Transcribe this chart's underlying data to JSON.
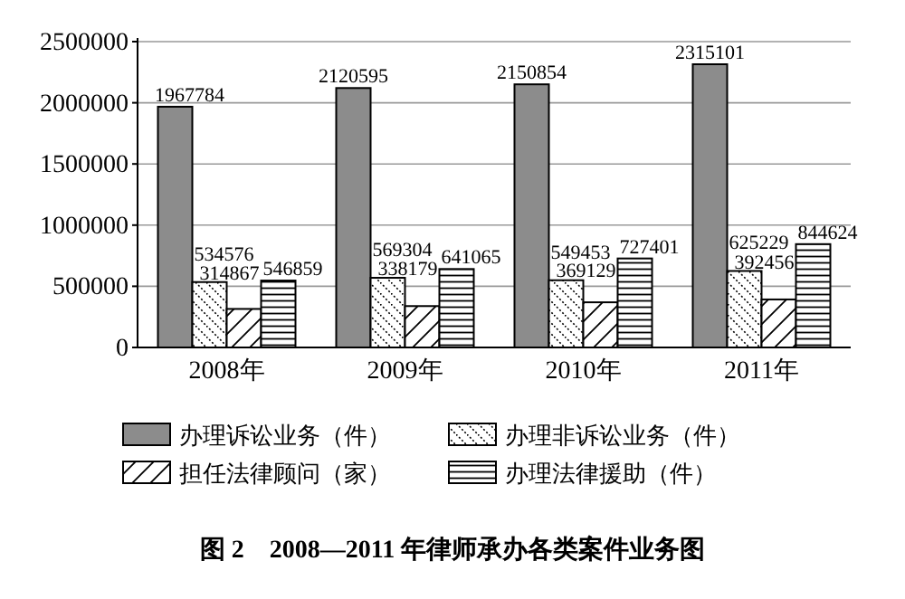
{
  "chart_data": {
    "type": "bar",
    "title": "图 2　2008—2011 年律师承办各类案件业务图",
    "categories": [
      "2008年",
      "2009年",
      "2010年",
      "2011年"
    ],
    "series": [
      {
        "name": "办理诉讼业务（件）",
        "color": "#8c8c8c",
        "values": [
          1967784,
          2120595,
          2150854,
          2315101
        ]
      },
      {
        "name": "办理非诉讼业务（件）",
        "color": "#000000",
        "values": [
          534576,
          569304,
          549453,
          625229
        ]
      },
      {
        "name": "担任法律顾问（家）",
        "color": "#000000",
        "values": [
          314867,
          338179,
          369129,
          392456
        ]
      },
      {
        "name": "办理法律援助（件）",
        "color": "#000000",
        "values": [
          546859,
          641065,
          727401,
          844624
        ]
      }
    ],
    "ylim": [
      0,
      2500000
    ],
    "yticks": [
      0,
      500000,
      1000000,
      1500000,
      2000000,
      2500000
    ],
    "grid": "y",
    "legend": "bottom",
    "data_labels": true
  }
}
